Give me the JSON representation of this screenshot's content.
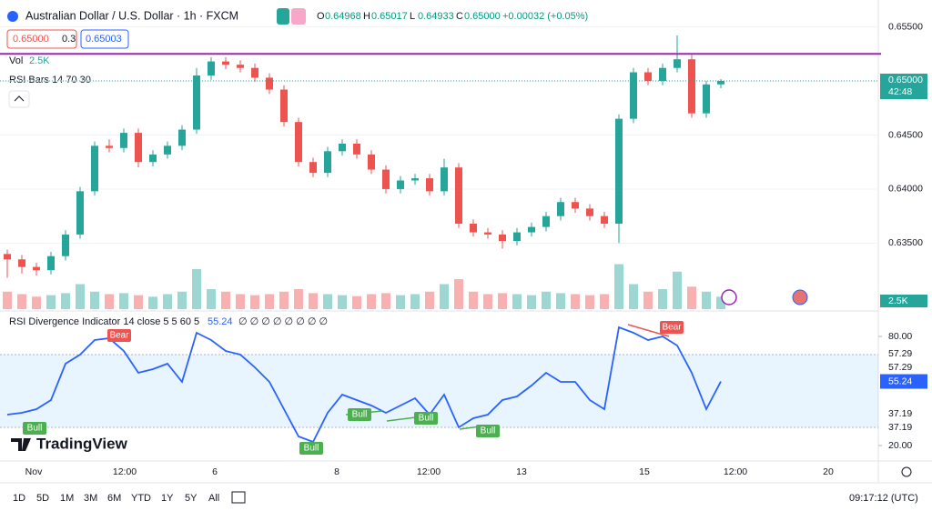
{
  "header": {
    "title": "Australian Dollar / U.S. Dollar · 1h · FXCM",
    "ohlc_prefixes": [
      "O",
      "H",
      "L",
      "C"
    ],
    "ohlc_labels": [
      "0.64968",
      "0.65017",
      "0.64933",
      "0.65000"
    ],
    "change": "+0.00032 (+0.05%)",
    "sell": "0.65000",
    "spread": "0.3",
    "buy": "0.65003",
    "vol_name": "Vol",
    "bars_indicator": "RSI Bars 14 70 30"
  },
  "chart_data": [
    {
      "type": "candlestick",
      "up_color": "#26a69a",
      "down_color": "#ef5350",
      "open": [
        0.634,
        0.6335,
        0.6328,
        0.6325,
        0.6338,
        0.6358,
        0.6398,
        0.644,
        0.6438,
        0.6452,
        0.6425,
        0.6432,
        0.644,
        0.6455,
        0.6505,
        0.6518,
        0.6515,
        0.6512,
        0.6503,
        0.6492,
        0.6462,
        0.6425,
        0.6415,
        0.6435,
        0.6442,
        0.6432,
        0.6418,
        0.64,
        0.6408,
        0.641,
        0.6398,
        0.642,
        0.6368,
        0.636,
        0.6358,
        0.6352,
        0.636,
        0.6365,
        0.6375,
        0.6388,
        0.6382,
        0.6375,
        0.6368,
        0.6465,
        0.6508,
        0.65,
        0.6512,
        0.652,
        0.647,
        0.64968
      ],
      "high": [
        0.6344,
        0.6339,
        0.6332,
        0.6342,
        0.6362,
        0.6402,
        0.6444,
        0.6446,
        0.6456,
        0.6456,
        0.6436,
        0.6444,
        0.6459,
        0.6512,
        0.6522,
        0.6522,
        0.6519,
        0.6516,
        0.6507,
        0.6496,
        0.6466,
        0.6429,
        0.6439,
        0.6446,
        0.6446,
        0.6436,
        0.6422,
        0.6412,
        0.6414,
        0.6414,
        0.6428,
        0.6424,
        0.6372,
        0.6364,
        0.6362,
        0.6364,
        0.6369,
        0.6379,
        0.6392,
        0.6392,
        0.6386,
        0.6379,
        0.6469,
        0.6512,
        0.6512,
        0.6516,
        0.6542,
        0.6524,
        0.65,
        0.65017
      ],
      "low": [
        0.6318,
        0.6322,
        0.632,
        0.6321,
        0.6334,
        0.6354,
        0.6394,
        0.6434,
        0.6434,
        0.642,
        0.6421,
        0.6428,
        0.6436,
        0.6451,
        0.6501,
        0.6511,
        0.6508,
        0.6499,
        0.6488,
        0.6458,
        0.6421,
        0.6411,
        0.6411,
        0.6431,
        0.6428,
        0.6414,
        0.6396,
        0.6396,
        0.6404,
        0.6394,
        0.6394,
        0.6364,
        0.6356,
        0.6354,
        0.6345,
        0.6348,
        0.6356,
        0.6361,
        0.6371,
        0.6378,
        0.6371,
        0.6364,
        0.635,
        0.6461,
        0.6496,
        0.6496,
        0.6508,
        0.6466,
        0.6466,
        0.64933
      ],
      "close": [
        0.6335,
        0.6328,
        0.6325,
        0.6338,
        0.6358,
        0.6398,
        0.644,
        0.6438,
        0.6452,
        0.6425,
        0.6432,
        0.644,
        0.6455,
        0.6505,
        0.6518,
        0.6515,
        0.6512,
        0.6503,
        0.6492,
        0.6462,
        0.6425,
        0.6415,
        0.6435,
        0.6442,
        0.6432,
        0.6418,
        0.64,
        0.6408,
        0.641,
        0.6398,
        0.642,
        0.6368,
        0.636,
        0.6358,
        0.6352,
        0.636,
        0.6365,
        0.6375,
        0.6388,
        0.6382,
        0.6375,
        0.6368,
        0.6465,
        0.6508,
        0.65,
        0.6512,
        0.652,
        0.647,
        0.64968,
        0.65
      ],
      "volume": [
        3500,
        3000,
        2500,
        2800,
        3200,
        5000,
        3500,
        3000,
        3200,
        2800,
        2500,
        3000,
        3500,
        8000,
        4000,
        3500,
        3000,
        2800,
        3000,
        3500,
        4000,
        3200,
        3000,
        2800,
        2600,
        3000,
        3200,
        2800,
        3000,
        3500,
        5000,
        6000,
        3500,
        3000,
        3200,
        3000,
        2800,
        3500,
        3200,
        3000,
        2800,
        3000,
        9000,
        5000,
        3500,
        4000,
        7500,
        4500,
        3500,
        2500
      ],
      "volume_label": "2.5K",
      "volume_ylim": [
        0,
        10000
      ],
      "ylim": [
        0.6289,
        0.6558
      ],
      "yticks": [
        {
          "value": 0.635,
          "label": "0.63500"
        },
        {
          "value": 0.64,
          "label": "0.64000"
        },
        {
          "value": 0.645,
          "label": "0.64500"
        },
        {
          "value": 0.65,
          "label": "0.65000"
        },
        {
          "value": 0.655,
          "label": "0.65500"
        }
      ],
      "last_label": "0.65000",
      "countdown": "42:48",
      "resistance": 0.6525,
      "resistance_color": "#9c27b0",
      "grid": true
    },
    {
      "type": "line",
      "title": "RSI Divergence Indicator 14 close 5 5 60 5",
      "value_label": "55.24",
      "placeholders": "∅ ∅ ∅ ∅ ∅ ∅ ∅ ∅",
      "color": "#2962ff",
      "values": [
        37,
        38,
        40,
        45,
        65,
        70,
        78,
        79,
        72,
        60,
        62,
        65,
        55,
        82,
        78,
        72,
        70,
        63,
        55,
        40,
        25,
        22,
        38,
        48,
        45,
        42,
        38,
        42,
        46,
        37,
        48,
        30,
        35,
        37,
        45,
        47,
        53,
        60,
        55,
        55,
        45,
        40,
        85,
        82,
        78,
        80,
        75,
        60,
        40,
        55.24
      ],
      "ylim": [
        12.5,
        92.5
      ],
      "yticks": [
        {
          "value": 20,
          "label": "20.00"
        },
        {
          "value": 80,
          "label": "80.00"
        }
      ],
      "band": [
        30,
        70
      ],
      "band_color": "#2196f3",
      "side_labels": [
        "57.29",
        "57.29",
        "37.19",
        "37.19"
      ],
      "divergence_labels": [
        "Bear",
        "Bull",
        "Bull",
        "Bull",
        "Bull",
        "Bull",
        "Bear"
      ]
    }
  ],
  "time_axis": [
    "Nov",
    "12:00",
    "6",
    "8",
    "12:00",
    "13",
    "15",
    "12:00",
    "20"
  ],
  "brand": "TradingView",
  "toolbar": {
    "ranges": [
      "1D",
      "5D",
      "1M",
      "3M",
      "6M",
      "YTD",
      "1Y",
      "5Y",
      "All"
    ],
    "clock": "09:17:12 (UTC)"
  }
}
